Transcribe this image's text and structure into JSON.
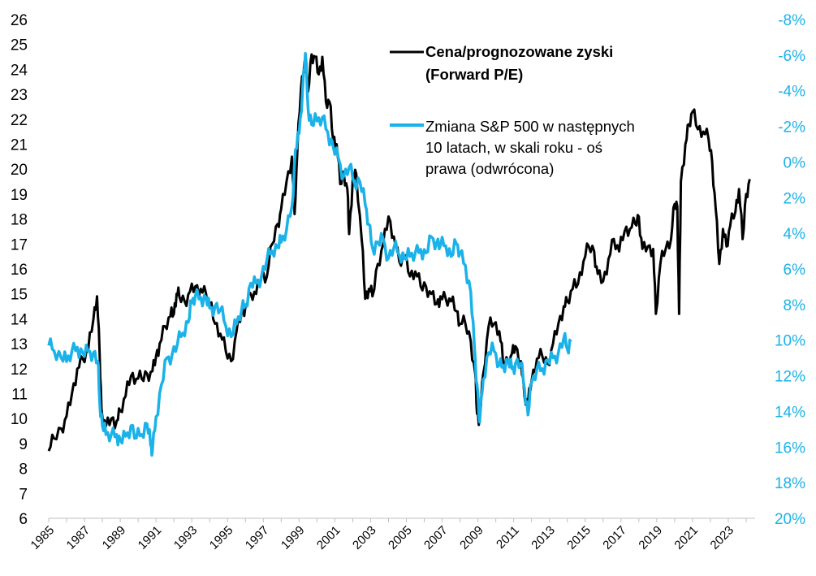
{
  "chart_data": {
    "type": "line",
    "title": "",
    "left_axis": {
      "range": [
        6,
        26
      ],
      "ticks": [
        "6",
        "7",
        "8",
        "9",
        "10",
        "11",
        "12",
        "13",
        "14",
        "15",
        "16",
        "17",
        "18",
        "19",
        "20",
        "21",
        "22",
        "23",
        "24",
        "25",
        "26"
      ]
    },
    "right_axis": {
      "range": [
        -8,
        20
      ],
      "inverted": true,
      "ticks": [
        "-8%",
        "-6%",
        "-4%",
        "-2%",
        "0%",
        "2%",
        "4%",
        "6%",
        "8%",
        "10%",
        "12%",
        "14%",
        "16%",
        "18%",
        "20%"
      ]
    },
    "x_axis": {
      "range": [
        1985,
        2024.5
      ],
      "tick_labels": [
        "1985",
        "1987",
        "1989",
        "1991",
        "1993",
        "1995",
        "1997",
        "1999",
        "2001",
        "2003",
        "2005",
        "2007",
        "2009",
        "2011",
        "2013",
        "2015",
        "2017",
        "2019",
        "2021",
        "2023"
      ]
    },
    "series": [
      {
        "name": "Cena/prognozowane zyski (Forward P/E)",
        "axis": "left",
        "color": "#000000",
        "points": [
          [
            1985.0,
            8.7
          ],
          [
            1985.3,
            9.2
          ],
          [
            1985.7,
            9.6
          ],
          [
            1986.0,
            10.1
          ],
          [
            1986.3,
            11.0
          ],
          [
            1986.6,
            12.0
          ],
          [
            1986.9,
            12.4
          ],
          [
            1987.2,
            12.7
          ],
          [
            1987.5,
            14.0
          ],
          [
            1987.7,
            14.9
          ],
          [
            1987.85,
            12.5
          ],
          [
            1987.95,
            10.4
          ],
          [
            1988.2,
            9.7
          ],
          [
            1988.5,
            10.0
          ],
          [
            1988.8,
            9.9
          ],
          [
            1989.0,
            10.3
          ],
          [
            1989.3,
            10.9
          ],
          [
            1989.6,
            11.7
          ],
          [
            1989.9,
            11.6
          ],
          [
            1990.2,
            11.6
          ],
          [
            1990.5,
            11.8
          ],
          [
            1990.8,
            11.9
          ],
          [
            1991.0,
            12.5
          ],
          [
            1991.2,
            13.0
          ],
          [
            1991.5,
            13.7
          ],
          [
            1991.8,
            14.1
          ],
          [
            1992.0,
            14.2
          ],
          [
            1992.15,
            15.0
          ],
          [
            1992.3,
            14.9
          ],
          [
            1992.6,
            14.7
          ],
          [
            1992.9,
            15.1
          ],
          [
            1993.2,
            15.3
          ],
          [
            1993.5,
            15.2
          ],
          [
            1993.8,
            15.0
          ],
          [
            1994.0,
            14.6
          ],
          [
            1994.3,
            13.8
          ],
          [
            1994.6,
            13.4
          ],
          [
            1994.9,
            12.7
          ],
          [
            1995.2,
            12.3
          ],
          [
            1995.5,
            13.5
          ],
          [
            1995.8,
            14.3
          ],
          [
            1996.0,
            14.5
          ],
          [
            1996.3,
            15.0
          ],
          [
            1996.6,
            15.0
          ],
          [
            1996.9,
            15.7
          ],
          [
            1997.2,
            15.7
          ],
          [
            1997.5,
            17.0
          ],
          [
            1997.8,
            17.8
          ],
          [
            1998.0,
            18.4
          ],
          [
            1998.3,
            19.5
          ],
          [
            1998.6,
            20.5
          ],
          [
            1998.75,
            18.2
          ],
          [
            1998.9,
            20.7
          ],
          [
            1999.1,
            23.2
          ],
          [
            1999.3,
            24.3
          ],
          [
            1999.5,
            23.1
          ],
          [
            1999.7,
            24.6
          ],
          [
            1999.9,
            24.5
          ],
          [
            2000.1,
            23.8
          ],
          [
            2000.3,
            24.5
          ],
          [
            2000.5,
            22.7
          ],
          [
            2000.7,
            22.7
          ],
          [
            2000.9,
            21.2
          ],
          [
            2001.1,
            21.0
          ],
          [
            2001.3,
            19.4
          ],
          [
            2001.5,
            19.9
          ],
          [
            2001.7,
            19.2
          ],
          [
            2001.8,
            17.4
          ],
          [
            2002.0,
            19.6
          ],
          [
            2002.2,
            19.8
          ],
          [
            2002.5,
            17.2
          ],
          [
            2002.7,
            14.8
          ],
          [
            2002.9,
            15.2
          ],
          [
            2003.1,
            14.9
          ],
          [
            2003.4,
            16.2
          ],
          [
            2003.7,
            17.0
          ],
          [
            2004.0,
            18.1
          ],
          [
            2004.3,
            17.3
          ],
          [
            2004.6,
            16.3
          ],
          [
            2004.9,
            16.5
          ],
          [
            2005.2,
            15.7
          ],
          [
            2005.5,
            15.9
          ],
          [
            2005.8,
            15.3
          ],
          [
            2006.1,
            15.3
          ],
          [
            2006.4,
            15.0
          ],
          [
            2006.7,
            14.6
          ],
          [
            2006.9,
            14.9
          ],
          [
            2007.2,
            14.8
          ],
          [
            2007.5,
            14.7
          ],
          [
            2007.8,
            14.3
          ],
          [
            2008.0,
            13.8
          ],
          [
            2008.3,
            13.8
          ],
          [
            2008.6,
            13.1
          ],
          [
            2008.85,
            11.8
          ],
          [
            2008.95,
            10.2
          ],
          [
            2009.1,
            10.0
          ],
          [
            2009.3,
            11.8
          ],
          [
            2009.6,
            13.7
          ],
          [
            2009.9,
            13.8
          ],
          [
            2010.2,
            13.5
          ],
          [
            2010.4,
            12.3
          ],
          [
            2010.7,
            12.3
          ],
          [
            2010.9,
            12.6
          ],
          [
            2011.1,
            12.9
          ],
          [
            2011.4,
            12.3
          ],
          [
            2011.6,
            10.9
          ],
          [
            2011.8,
            10.6
          ],
          [
            2012.0,
            11.5
          ],
          [
            2012.3,
            12.4
          ],
          [
            2012.6,
            12.5
          ],
          [
            2012.9,
            12.2
          ],
          [
            2013.2,
            13.0
          ],
          [
            2013.5,
            13.8
          ],
          [
            2013.8,
            14.5
          ],
          [
            2014.0,
            14.7
          ],
          [
            2014.3,
            15.2
          ],
          [
            2014.6,
            15.4
          ],
          [
            2014.9,
            16.3
          ],
          [
            2015.2,
            16.9
          ],
          [
            2015.5,
            16.7
          ],
          [
            2015.7,
            15.8
          ],
          [
            2016.0,
            15.5
          ],
          [
            2016.3,
            16.4
          ],
          [
            2016.6,
            17.2
          ],
          [
            2016.9,
            16.7
          ],
          [
            2017.2,
            17.5
          ],
          [
            2017.5,
            17.6
          ],
          [
            2017.8,
            17.8
          ],
          [
            2018.0,
            18.1
          ],
          [
            2018.2,
            16.8
          ],
          [
            2018.5,
            16.9
          ],
          [
            2018.8,
            16.8
          ],
          [
            2018.95,
            14.2
          ],
          [
            2019.2,
            16.2
          ],
          [
            2019.5,
            16.8
          ],
          [
            2019.8,
            17.2
          ],
          [
            2020.0,
            18.6
          ],
          [
            2020.15,
            18.5
          ],
          [
            2020.25,
            14.2
          ],
          [
            2020.35,
            19.5
          ],
          [
            2020.6,
            21.0
          ],
          [
            2020.8,
            21.8
          ],
          [
            2021.0,
            22.3
          ],
          [
            2021.3,
            21.6
          ],
          [
            2021.6,
            21.5
          ],
          [
            2021.9,
            21.2
          ],
          [
            2022.1,
            20.3
          ],
          [
            2022.3,
            18.4
          ],
          [
            2022.5,
            16.2
          ],
          [
            2022.7,
            17.6
          ],
          [
            2022.9,
            16.9
          ],
          [
            2023.1,
            17.7
          ],
          [
            2023.4,
            18.3
          ],
          [
            2023.6,
            19.2
          ],
          [
            2023.8,
            17.2
          ],
          [
            2024.0,
            19.0
          ],
          [
            2024.2,
            19.6
          ]
        ]
      },
      {
        "name": "Zmiana S&P 500 w następnych 10 latach, w skali roku - oś prawa (odwrócona)",
        "axis": "right",
        "color": "#1ab2e8",
        "points": [
          [
            1985.0,
            10.3
          ],
          [
            1985.3,
            10.6
          ],
          [
            1985.7,
            11.0
          ],
          [
            1986.0,
            11.2
          ],
          [
            1986.3,
            10.6
          ],
          [
            1986.6,
            10.4
          ],
          [
            1986.9,
            10.7
          ],
          [
            1987.2,
            10.6
          ],
          [
            1987.5,
            10.7
          ],
          [
            1987.75,
            11.2
          ],
          [
            1987.85,
            13.5
          ],
          [
            1988.0,
            14.8
          ],
          [
            1988.2,
            15.3
          ],
          [
            1988.5,
            15.3
          ],
          [
            1988.8,
            15.3
          ],
          [
            1989.0,
            15.6
          ],
          [
            1989.3,
            15.4
          ],
          [
            1989.6,
            14.8
          ],
          [
            1989.9,
            15.5
          ],
          [
            1990.2,
            15.3
          ],
          [
            1990.5,
            14.7
          ],
          [
            1990.7,
            15.9
          ],
          [
            1990.8,
            16.2
          ],
          [
            1991.0,
            14.3
          ],
          [
            1991.3,
            12.5
          ],
          [
            1991.6,
            11.0
          ],
          [
            1991.9,
            10.8
          ],
          [
            1992.2,
            10.2
          ],
          [
            1992.5,
            9.6
          ],
          [
            1992.8,
            9.0
          ],
          [
            1993.0,
            7.9
          ],
          [
            1993.2,
            7.5
          ],
          [
            1993.5,
            7.6
          ],
          [
            1993.8,
            7.6
          ],
          [
            1994.0,
            8.2
          ],
          [
            1994.3,
            8.1
          ],
          [
            1994.6,
            8.3
          ],
          [
            1994.9,
            9.2
          ],
          [
            1995.2,
            9.8
          ],
          [
            1995.5,
            9.1
          ],
          [
            1995.8,
            8.2
          ],
          [
            1996.0,
            8.0
          ],
          [
            1996.3,
            6.8
          ],
          [
            1996.6,
            6.8
          ],
          [
            1996.9,
            6.4
          ],
          [
            1997.2,
            5.5
          ],
          [
            1997.5,
            5.0
          ],
          [
            1997.8,
            4.8
          ],
          [
            1998.0,
            4.5
          ],
          [
            1998.3,
            3.8
          ],
          [
            1998.6,
            2.5
          ],
          [
            1998.8,
            -0.7
          ],
          [
            1999.0,
            -1.6
          ],
          [
            1999.2,
            -4.2
          ],
          [
            1999.35,
            -6.1
          ],
          [
            1999.5,
            -3.0
          ],
          [
            1999.7,
            -2.1
          ],
          [
            2000.0,
            -2.3
          ],
          [
            2000.3,
            -2.5
          ],
          [
            2000.6,
            -1.7
          ],
          [
            2000.9,
            -0.9
          ],
          [
            2001.2,
            -0.2
          ],
          [
            2001.5,
            0.8
          ],
          [
            2001.8,
            0.3
          ],
          [
            2002.1,
            1.2
          ],
          [
            2002.4,
            1.1
          ],
          [
            2002.7,
            2.4
          ],
          [
            2002.9,
            3.5
          ],
          [
            2003.1,
            4.8
          ],
          [
            2003.4,
            4.5
          ],
          [
            2003.7,
            4.3
          ],
          [
            2004.0,
            5.4
          ],
          [
            2004.3,
            4.8
          ],
          [
            2004.6,
            5.2
          ],
          [
            2004.9,
            5.4
          ],
          [
            2005.2,
            5.3
          ],
          [
            2005.5,
            5.1
          ],
          [
            2005.8,
            4.9
          ],
          [
            2006.1,
            5.1
          ],
          [
            2006.4,
            4.2
          ],
          [
            2006.7,
            4.5
          ],
          [
            2006.9,
            4.7
          ],
          [
            2007.2,
            4.7
          ],
          [
            2007.5,
            5.3
          ],
          [
            2007.8,
            4.6
          ],
          [
            2008.0,
            5.1
          ],
          [
            2008.3,
            5.8
          ],
          [
            2008.6,
            7.3
          ],
          [
            2008.8,
            10.3
          ],
          [
            2008.95,
            12.5
          ],
          [
            2009.1,
            14.6
          ],
          [
            2009.3,
            12.2
          ],
          [
            2009.6,
            10.7
          ],
          [
            2009.9,
            10.6
          ],
          [
            2010.2,
            11.4
          ],
          [
            2010.4,
            11.4
          ],
          [
            2010.7,
            11.1
          ],
          [
            2010.9,
            11.6
          ],
          [
            2011.1,
            11.3
          ],
          [
            2011.4,
            11.3
          ],
          [
            2011.6,
            12.7
          ],
          [
            2011.8,
            14.2
          ],
          [
            2012.0,
            12.4
          ],
          [
            2012.3,
            11.6
          ],
          [
            2012.6,
            11.6
          ],
          [
            2012.9,
            11.1
          ],
          [
            2013.2,
            11.0
          ],
          [
            2013.5,
            10.7
          ],
          [
            2013.8,
            9.9
          ],
          [
            2014.0,
            10.5
          ],
          [
            2014.2,
            10.1
          ]
        ]
      }
    ],
    "legend": {
      "position": "top-center",
      "entries": [
        {
          "lines": [
            "Cena/prognozowane zyski",
            "(Forward P/E)"
          ],
          "color": "#000000",
          "bold": true
        },
        {
          "lines": [
            "Zmiana S&P 500 w następnych",
            "10 latach, w skali roku - oś",
            "prawa (odwrócona)"
          ],
          "color": "#1ab2e8",
          "bold": false
        }
      ]
    }
  }
}
